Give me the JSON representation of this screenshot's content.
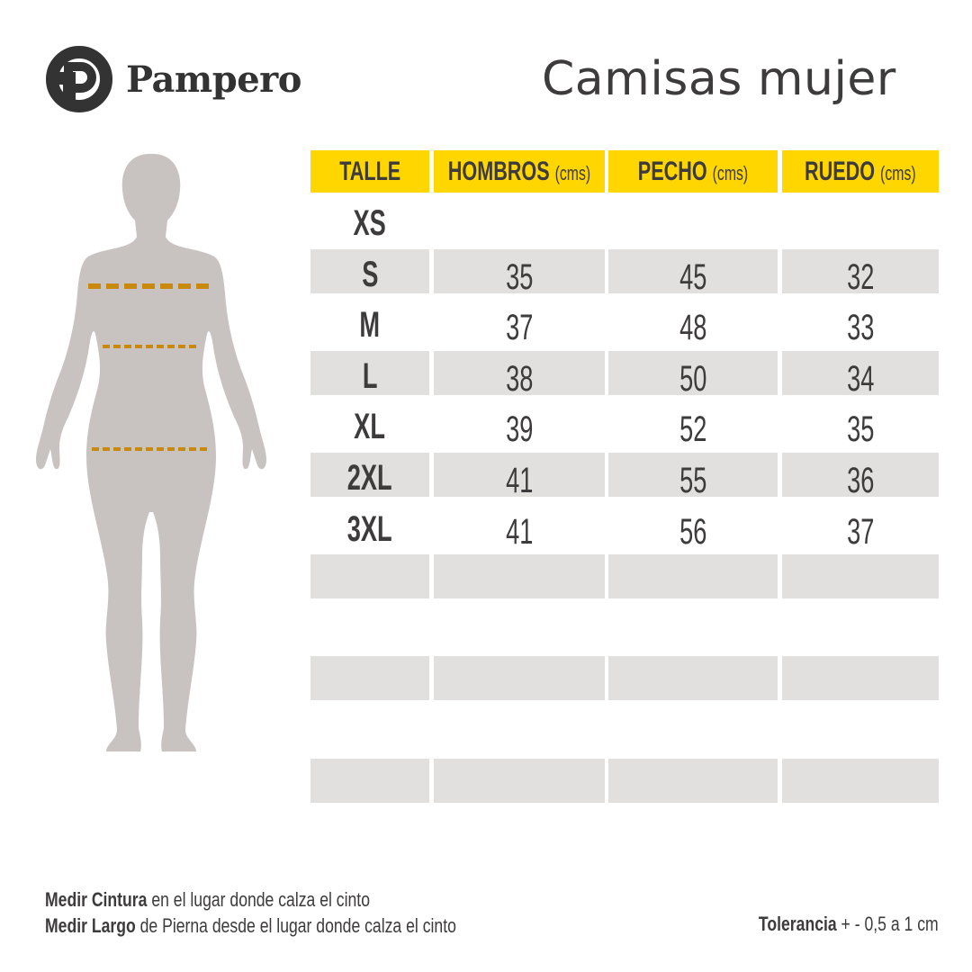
{
  "brand": {
    "name": "Pampero",
    "logo_icon": "pampero-p-circle-logo"
  },
  "title": "Camisas mujer",
  "table": {
    "headers": [
      {
        "label": "TALLE",
        "unit": ""
      },
      {
        "label": "HOMBROS",
        "unit": "(cms)"
      },
      {
        "label": "PECHO",
        "unit": "(cms)"
      },
      {
        "label": "RUEDO",
        "unit": "(cms)"
      }
    ],
    "rows": [
      {
        "size": "XS",
        "hombros": "",
        "pecho": "",
        "ruedo": ""
      },
      {
        "size": "S",
        "hombros": "35",
        "pecho": "45",
        "ruedo": "32"
      },
      {
        "size": "M",
        "hombros": "37",
        "pecho": "48",
        "ruedo": "33"
      },
      {
        "size": "L",
        "hombros": "38",
        "pecho": "50",
        "ruedo": "34"
      },
      {
        "size": "XL",
        "hombros": "39",
        "pecho": "52",
        "ruedo": "35"
      },
      {
        "size": "2XL",
        "hombros": "41",
        "pecho": "55",
        "ruedo": "36"
      },
      {
        "size": "3XL",
        "hombros": "41",
        "pecho": "56",
        "ruedo": "37"
      },
      {
        "size": "",
        "hombros": "",
        "pecho": "",
        "ruedo": ""
      },
      {
        "size": "",
        "hombros": "",
        "pecho": "",
        "ruedo": ""
      },
      {
        "size": "",
        "hombros": "",
        "pecho": "",
        "ruedo": ""
      },
      {
        "size": "",
        "hombros": "",
        "pecho": "",
        "ruedo": ""
      },
      {
        "size": "",
        "hombros": "",
        "pecho": "",
        "ruedo": ""
      }
    ]
  },
  "notes": [
    {
      "bold": "Medir Cintura",
      "text": " en el lugar donde calza el cinto"
    },
    {
      "bold": "Medir Largo",
      "text": " de Pierna desde el lugar donde calza el cinto"
    }
  ],
  "tolerance": {
    "bold": "Tolerancia",
    "text": " + - 0,5 a 1 cm"
  },
  "colors": {
    "header": "#ffd600",
    "stripe": "#e2e0df",
    "silhouette": "#c8c3c0",
    "measure_line": "#c98a0c",
    "text": "#3d3b3b"
  }
}
